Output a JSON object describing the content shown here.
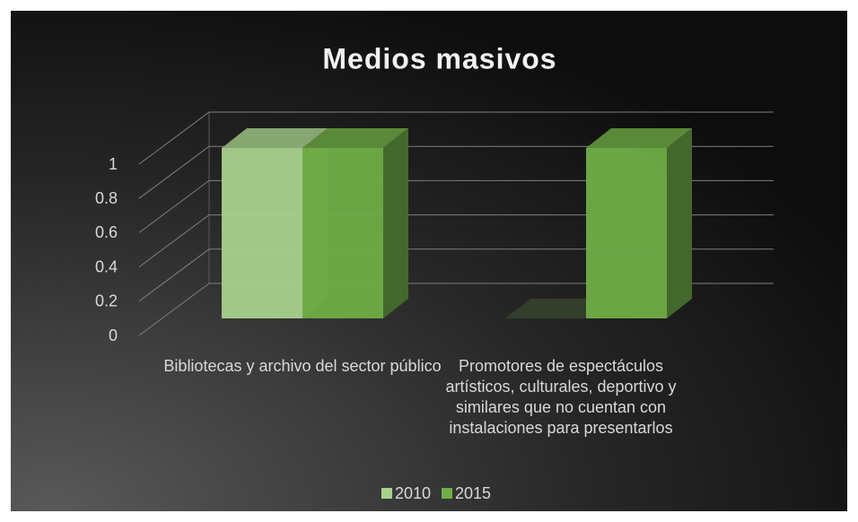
{
  "chart_data": {
    "type": "bar3d",
    "title": "Medios masivos",
    "categories": [
      "Bibliotecas y archivo del sector público",
      "Promotores de espectáculos artísticos, culturales, deportivo y similares que no cuentan con instalaciones para presentarlos"
    ],
    "series": [
      {
        "name": "2010",
        "color": "#a9d18e",
        "values": [
          1,
          0
        ]
      },
      {
        "name": "2015",
        "color": "#70ad47",
        "values": [
          1,
          1
        ]
      }
    ],
    "ylim": [
      0,
      1
    ],
    "yticks": [
      0,
      0.2,
      0.4,
      0.6,
      0.8,
      1
    ],
    "grid": true,
    "legend": "bottom"
  }
}
